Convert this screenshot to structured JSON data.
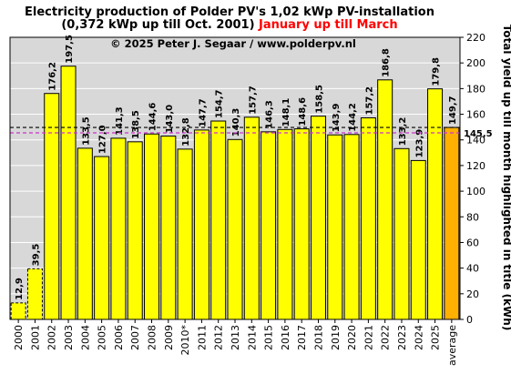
{
  "chart_data": {
    "type": "bar",
    "title_line1": "Electricity production  of Polder  PV's  1,02 kWp PV-installation",
    "title_line2_black": "(0,372 kWp up till Oct. 2001) ",
    "title_line2_red": "January up till March",
    "copyright": "© 2025 Peter J. Segaar / www.polderpv.nl",
    "ylabel": "Total yield up till month highlighted in title (kWh)",
    "ylim": [
      0,
      220
    ],
    "yticks": [
      "0",
      "20",
      "40",
      "60",
      "80",
      "100",
      "120",
      "140",
      "160",
      "180",
      "200",
      "220"
    ],
    "categories": [
      "2000",
      "2001",
      "2002",
      "2003",
      "2004",
      "2005",
      "2006",
      "2007",
      "2008",
      "2009",
      "2010*",
      "2011",
      "2012",
      "2013",
      "2014",
      "2015",
      "2016",
      "2017",
      "2018",
      "2019",
      "2020",
      "2021",
      "2022",
      "2023",
      "2024",
      "2025",
      "average"
    ],
    "values": [
      12.9,
      39.5,
      176.2,
      197.5,
      133.5,
      127.0,
      141.3,
      138.5,
      144.6,
      143.0,
      132.8,
      147.7,
      154.7,
      140.3,
      157.7,
      146.3,
      148.1,
      148.6,
      158.5,
      143.9,
      144.2,
      157.2,
      186.8,
      133.2,
      123.9,
      179.8,
      149.7
    ],
    "value_labels": [
      "12,9",
      "39,5",
      "176,2",
      "197,5",
      "133,5",
      "127,0",
      "141,3",
      "138,5",
      "144,6",
      "143,0",
      "132,8",
      "147,7",
      "154,7",
      "140,3",
      "157,7",
      "146,3",
      "148,1",
      "148,6",
      "158,5",
      "143,9",
      "144,2",
      "157,2",
      "186,8",
      "133,2",
      "123,9",
      "179,8",
      "149,7"
    ],
    "dashed_bars": [
      "2000",
      "2001"
    ],
    "highlight_bar": "average",
    "reference_lines": [
      {
        "value": 149.7,
        "color": "#000000",
        "style": "dashed"
      },
      {
        "value": 145.5,
        "color": "#cc33cc",
        "style": "dashed",
        "label": "145,5"
      }
    ],
    "colors": {
      "bar": "#ffff00",
      "average_bar": "#ffb000",
      "average_label": "#ff0000",
      "plot_background": "#d8d8d8",
      "grid": "#ffffff",
      "magenta": "#cc33cc"
    },
    "grid": true
  }
}
